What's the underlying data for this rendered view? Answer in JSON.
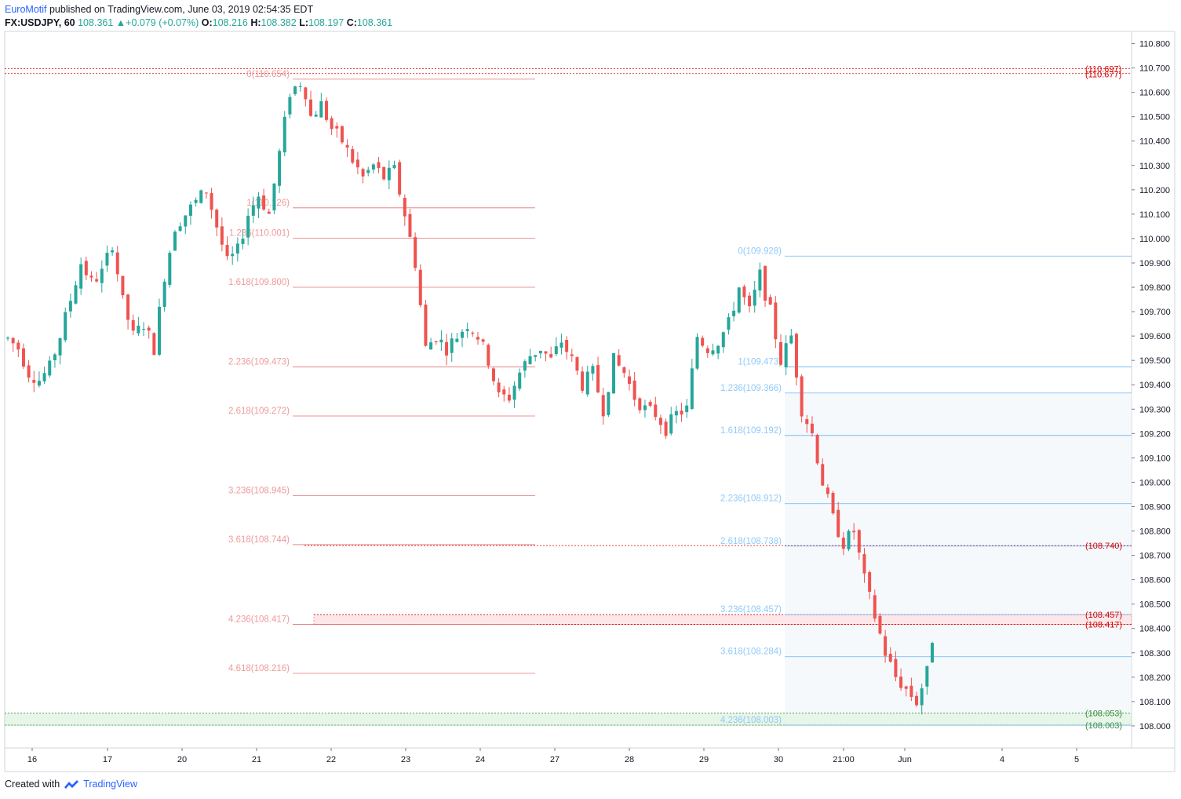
{
  "header": {
    "author": "EuroMotif",
    "published": "published on TradingView.com, June 03, 2019 02:54:35 EDT",
    "symbol": "FX:USDJPY, 60",
    "last": "108.361",
    "change": "+0.079 (+0.07%)",
    "o_label": "O:",
    "o": "108.216",
    "h_label": "H:",
    "h": "108.382",
    "l_label": "L:",
    "l": "108.197",
    "c_label": "C:",
    "c": "108.361"
  },
  "footer": {
    "created": "Created with",
    "brand": "TradingView"
  },
  "colors": {
    "up": "#26a69a",
    "down": "#ef5350",
    "fib1": "#ef9a9a",
    "fib1_line": "#e57373",
    "fib2": "#90caf9",
    "fib2_line": "#64b5f6",
    "level_red": "#d50000",
    "level_green": "#388e3c"
  },
  "chart_data": {
    "type": "candlestick",
    "symbol": "FX:USDJPY",
    "timeframe": "60",
    "y_range": [
      107.92,
      110.85
    ],
    "y_ticks": [
      "110.800",
      "110.700",
      "110.600",
      "110.500",
      "110.400",
      "110.300",
      "110.200",
      "110.100",
      "110.000",
      "109.900",
      "109.800",
      "109.700",
      "109.600",
      "109.500",
      "109.400",
      "109.300",
      "109.200",
      "109.100",
      "109.000",
      "108.900",
      "108.800",
      "108.700",
      "108.600",
      "108.500",
      "108.400",
      "108.300",
      "108.200",
      "108.100",
      "108.000"
    ],
    "x_ticks": [
      "16",
      "17",
      "20",
      "21",
      "22",
      "23",
      "24",
      "27",
      "28",
      "29",
      "30",
      "21:00",
      "Jun",
      "4",
      "5"
    ],
    "fib_extension_1": {
      "levels": [
        {
          "label": "0(110.654)",
          "value": 110.654
        },
        {
          "label": "1(110.126)",
          "value": 110.126
        },
        {
          "label": "1.236(110.001)",
          "value": 110.001
        },
        {
          "label": "1.618(109.800)",
          "value": 109.8
        },
        {
          "label": "2.236(109.473)",
          "value": 109.473
        },
        {
          "label": "2.618(109.272)",
          "value": 109.272
        },
        {
          "label": "3.236(108.945)",
          "value": 108.945
        },
        {
          "label": "3.618(108.744)",
          "value": 108.744
        },
        {
          "label": "4.236(108.417)",
          "value": 108.417
        },
        {
          "label": "4.618(108.216)",
          "value": 108.216
        }
      ]
    },
    "fib_extension_2": {
      "levels": [
        {
          "label": "0(109.928)",
          "value": 109.928
        },
        {
          "label": "1(109.473)",
          "value": 109.473
        },
        {
          "label": "1.236(109.366)",
          "value": 109.366
        },
        {
          "label": "1.618(109.192)",
          "value": 109.192
        },
        {
          "label": "2.236(108.912)",
          "value": 108.912
        },
        {
          "label": "2.618(108.738)",
          "value": 108.738
        },
        {
          "label": "3.236(108.457)",
          "value": 108.457
        },
        {
          "label": "3.618(108.284)",
          "value": 108.284
        },
        {
          "label": "4.236(108.003)",
          "value": 108.003
        }
      ]
    },
    "price_levels": [
      {
        "label": "(110.697)",
        "value": 110.697,
        "color": "red"
      },
      {
        "label": "(110.677)",
        "value": 110.677,
        "color": "red"
      },
      {
        "label": "(108.740)",
        "value": 108.74,
        "color": "red"
      },
      {
        "label": "(108.457)",
        "value": 108.457,
        "color": "red"
      },
      {
        "label": "(108.417)",
        "value": 108.417,
        "color": "red"
      },
      {
        "label": "(108.053)",
        "value": 108.053,
        "color": "green"
      },
      {
        "label": "(108.003)",
        "value": 108.003,
        "color": "green"
      }
    ],
    "zones": [
      {
        "from": 108.417,
        "to": 108.457,
        "color": "red"
      },
      {
        "from": 108.003,
        "to": 108.053,
        "color": "green"
      }
    ],
    "price_path": [
      [
        0,
        109.59
      ],
      [
        2,
        109.55
      ],
      [
        4,
        109.45
      ],
      [
        6,
        109.42
      ],
      [
        8,
        109.47
      ],
      [
        10,
        109.6
      ],
      [
        12,
        109.75
      ],
      [
        14,
        109.9
      ],
      [
        16,
        109.82
      ],
      [
        18,
        109.86
      ],
      [
        20,
        109.98
      ],
      [
        22,
        109.74
      ],
      [
        24,
        109.6
      ],
      [
        26,
        109.65
      ],
      [
        28,
        109.55
      ],
      [
        30,
        109.85
      ],
      [
        32,
        110.05
      ],
      [
        34,
        110.1
      ],
      [
        36,
        110.15
      ],
      [
        38,
        110.2
      ],
      [
        40,
        110.05
      ],
      [
        42,
        109.9
      ],
      [
        44,
        109.95
      ],
      [
        46,
        110.1
      ],
      [
        48,
        110.18
      ],
      [
        50,
        110.1
      ],
      [
        52,
        110.35
      ],
      [
        54,
        110.6
      ],
      [
        56,
        110.64
      ],
      [
        57,
        110.6
      ],
      [
        58,
        110.5
      ],
      [
        60,
        110.55
      ],
      [
        62,
        110.45
      ],
      [
        64,
        110.4
      ],
      [
        66,
        110.32
      ],
      [
        68,
        110.25
      ],
      [
        70,
        110.3
      ],
      [
        72,
        110.25
      ],
      [
        74,
        110.28
      ],
      [
        76,
        110.1
      ],
      [
        78,
        109.9
      ],
      [
        80,
        109.55
      ],
      [
        82,
        109.6
      ],
      [
        84,
        109.55
      ],
      [
        86,
        109.6
      ],
      [
        88,
        109.65
      ],
      [
        90,
        109.6
      ],
      [
        92,
        109.5
      ],
      [
        94,
        109.35
      ],
      [
        96,
        109.35
      ],
      [
        98,
        109.45
      ],
      [
        100,
        109.52
      ],
      [
        102,
        109.55
      ],
      [
        104,
        109.5
      ],
      [
        106,
        109.58
      ],
      [
        108,
        109.5
      ],
      [
        110,
        109.4
      ],
      [
        112,
        109.45
      ],
      [
        114,
        109.3
      ],
      [
        116,
        109.5
      ],
      [
        118,
        109.45
      ],
      [
        120,
        109.35
      ],
      [
        122,
        109.3
      ],
      [
        124,
        109.28
      ],
      [
        126,
        109.22
      ],
      [
        128,
        109.28
      ],
      [
        130,
        109.3
      ],
      [
        132,
        109.6
      ],
      [
        134,
        109.55
      ],
      [
        136,
        109.58
      ],
      [
        138,
        109.65
      ],
      [
        140,
        109.8
      ],
      [
        142,
        109.7
      ],
      [
        144,
        109.85
      ],
      [
        146,
        109.7
      ],
      [
        148,
        109.5
      ],
      [
        150,
        109.6
      ],
      [
        152,
        109.3
      ],
      [
        154,
        109.2
      ],
      [
        156,
        109.0
      ],
      [
        158,
        108.85
      ],
      [
        160,
        108.75
      ],
      [
        162,
        108.8
      ],
      [
        164,
        108.6
      ],
      [
        166,
        108.45
      ],
      [
        168,
        108.3
      ],
      [
        170,
        108.2
      ],
      [
        172,
        108.15
      ],
      [
        174,
        108.1
      ],
      [
        176,
        108.22
      ],
      [
        177,
        108.36
      ]
    ]
  }
}
